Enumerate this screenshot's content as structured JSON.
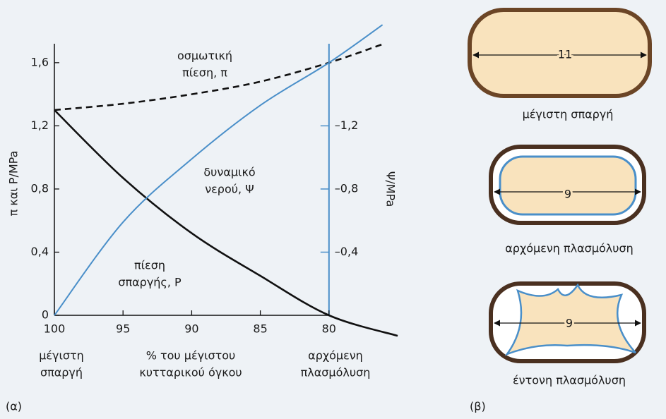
{
  "chart_data": {
    "type": "line",
    "xlim": [
      100,
      75
    ],
    "xticks": [
      100,
      95,
      90,
      85,
      80
    ],
    "ylim": [
      0,
      1.72
    ],
    "yticks": [
      0,
      {
        "value": 0.4,
        "label": "0,4"
      },
      {
        "value": 0.8,
        "label": "0,8"
      },
      {
        "value": 1.2,
        "label": "1,2"
      },
      {
        "value": 1.6,
        "label": "1,6"
      }
    ],
    "y2lim": [
      0,
      -1.72
    ],
    "y2ticks": [
      {
        "value": -0.4,
        "label": "–0,4"
      },
      {
        "value": -0.8,
        "label": "–0,8"
      },
      {
        "value": -1.2,
        "label": "–1,2"
      }
    ],
    "ylabel": "π και P/MPa",
    "y2label": "Ψ/MPa",
    "xlabel": [
      "% του μέγιστου",
      "κυτταρικού όγκου"
    ],
    "x_end_labels": [
      [
        "μέγιστη",
        "σπαργή"
      ],
      [
        "αρχόμενη",
        "πλασμόλυση"
      ]
    ],
    "panel_label": "(α)",
    "series": [
      {
        "x": [
          100,
          95,
          90,
          85,
          80,
          76
        ],
        "values": [
          1.3,
          1.34,
          1.4,
          1.48,
          1.6,
          1.72
        ],
        "color": "#111111",
        "dashed": true
      },
      {
        "x": [
          100,
          95,
          90,
          85,
          80,
          75
        ],
        "values": [
          1.3,
          0.87,
          0.52,
          0.25,
          0,
          -0.13
        ],
        "color": "#111111",
        "dashed": false
      },
      {
        "x": [
          100,
          95,
          90,
          85,
          80,
          76.1
        ],
        "values": [
          0,
          -0.59,
          -0.99,
          -1.33,
          -1.6,
          -1.84
        ],
        "color": "#4a8fc9",
        "dashed": false,
        "axis": "y2"
      }
    ],
    "annotations": [
      [
        "οσμωτική",
        "πίεση, π"
      ],
      [
        "δυναμικό",
        "νερού, Ψ"
      ],
      [
        "πίεση",
        "σπαργής, P"
      ]
    ]
  },
  "panel_b": {
    "label": "(β)",
    "cells": [
      {
        "size": "11",
        "caption": "μέγιστη σπαργή"
      },
      {
        "size": "9",
        "caption": "αρχόμενη πλασμόλυση"
      },
      {
        "size": "9",
        "caption": "έντονη πλασμόλυση"
      }
    ]
  }
}
